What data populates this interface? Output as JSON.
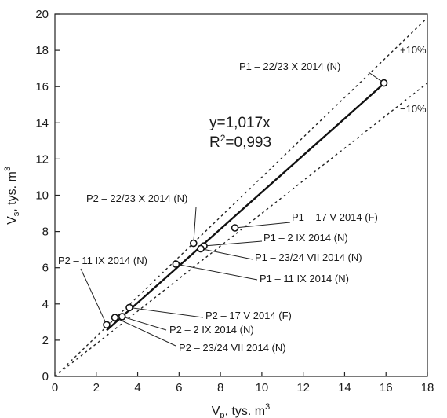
{
  "chart_data": {
    "type": "scatter",
    "xlabel": {
      "base": "V",
      "sub": "p",
      "rest": ", tys. m",
      "sup": "3"
    },
    "ylabel": {
      "base": "V",
      "sub": "s",
      "rest": ", tys. m",
      "sup": "3"
    },
    "xlim": [
      0,
      18
    ],
    "ylim": [
      0,
      20
    ],
    "xticks": [
      0,
      2,
      4,
      6,
      8,
      10,
      12,
      14,
      16,
      18
    ],
    "yticks": [
      0,
      2,
      4,
      6,
      8,
      10,
      12,
      14,
      16,
      18,
      20
    ],
    "grid": false,
    "equation": {
      "line1": "y=1,017x",
      "r2_prefix": "R",
      "r2_sup": "2",
      "r2_suffix": "=0,993"
    },
    "regression": {
      "slope": 1.017,
      "x_range": [
        2.5,
        15.9
      ]
    },
    "bands": [
      {
        "label": "+10%",
        "slope": 1.1
      },
      {
        "label": "−10%",
        "slope": 0.9
      }
    ],
    "points": [
      {
        "label": "P1 – 22/23 X 2014 (N)",
        "x": 15.9,
        "y": 16.2
      },
      {
        "label": "P1 – 17 V 2014 (F)",
        "x": 8.7,
        "y": 8.2
      },
      {
        "label": "P1 – 2 IX 2014 (N)",
        "x": 7.2,
        "y": 7.2
      },
      {
        "label": "P1 – 23/24 VII 2014 (N)",
        "x": 7.05,
        "y": 7.05
      },
      {
        "label": "P1 – 11 IX 2014 (N)",
        "x": 5.85,
        "y": 6.2
      },
      {
        "label": "P2 – 22/23 X 2014 (N)",
        "x": 6.7,
        "y": 7.35
      },
      {
        "label": "P2 – 11 IX 2014 (N)",
        "x": 2.5,
        "y": 2.85
      },
      {
        "label": "P2 – 17 V 2014 (F)",
        "x": 3.6,
        "y": 3.8
      },
      {
        "label": "P2 – 2 IX 2014 (N)",
        "x": 3.25,
        "y": 3.3
      },
      {
        "label": "P2 – 23/24 VII 2014 (N)",
        "x": 2.9,
        "y": 3.25
      }
    ]
  }
}
